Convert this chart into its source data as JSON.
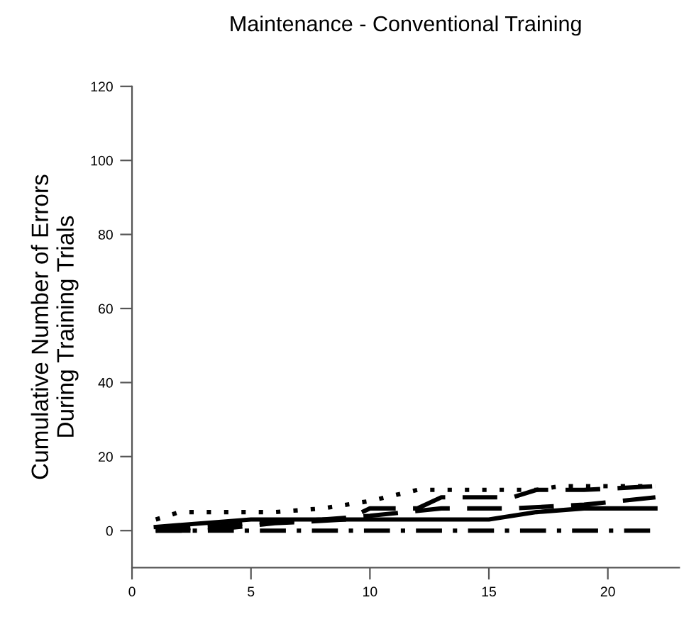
{
  "chart_data": {
    "type": "line",
    "title": "Maintenance - Conventional Training",
    "ylabel": "Cumulative Number of Errors\nDuring Training Trials",
    "xlim": [
      0,
      23
    ],
    "ylim": [
      -10,
      120
    ],
    "xticks": [
      0,
      5,
      10,
      15,
      20
    ],
    "yticks": [
      0,
      20,
      40,
      60,
      80,
      100,
      120
    ],
    "grid": false,
    "legend": false,
    "marker": "none",
    "series": [
      {
        "color": "#000000",
        "line_style": "dotted",
        "x": [
          1,
          2,
          6,
          8,
          10,
          12,
          15,
          17,
          18,
          20,
          22
        ],
        "values": [
          3,
          5,
          5,
          6,
          8,
          11,
          11,
          11,
          12,
          12,
          12
        ]
      },
      {
        "color": "#000000",
        "line_style": "dashed",
        "x": [
          1,
          3,
          6,
          9,
          10,
          12,
          13,
          16,
          17,
          19,
          22
        ],
        "values": [
          0,
          0,
          2,
          3,
          6,
          6,
          9,
          9,
          11,
          11,
          12
        ]
      },
      {
        "color": "#000000",
        "line_style": "dashed",
        "x": [
          1,
          3,
          5,
          8,
          10,
          13,
          16,
          19,
          22
        ],
        "values": [
          0,
          1,
          2,
          3,
          4,
          6,
          6,
          7,
          9
        ]
      },
      {
        "color": "#000000",
        "line_style": "solid",
        "x": [
          1,
          5,
          10,
          15,
          17,
          19,
          22
        ],
        "values": [
          1,
          3,
          3,
          3,
          5,
          6,
          6
        ]
      },
      {
        "color": "#000000",
        "line_style": "dashdot",
        "x": [
          1,
          22
        ],
        "values": [
          0,
          0
        ]
      }
    ]
  }
}
